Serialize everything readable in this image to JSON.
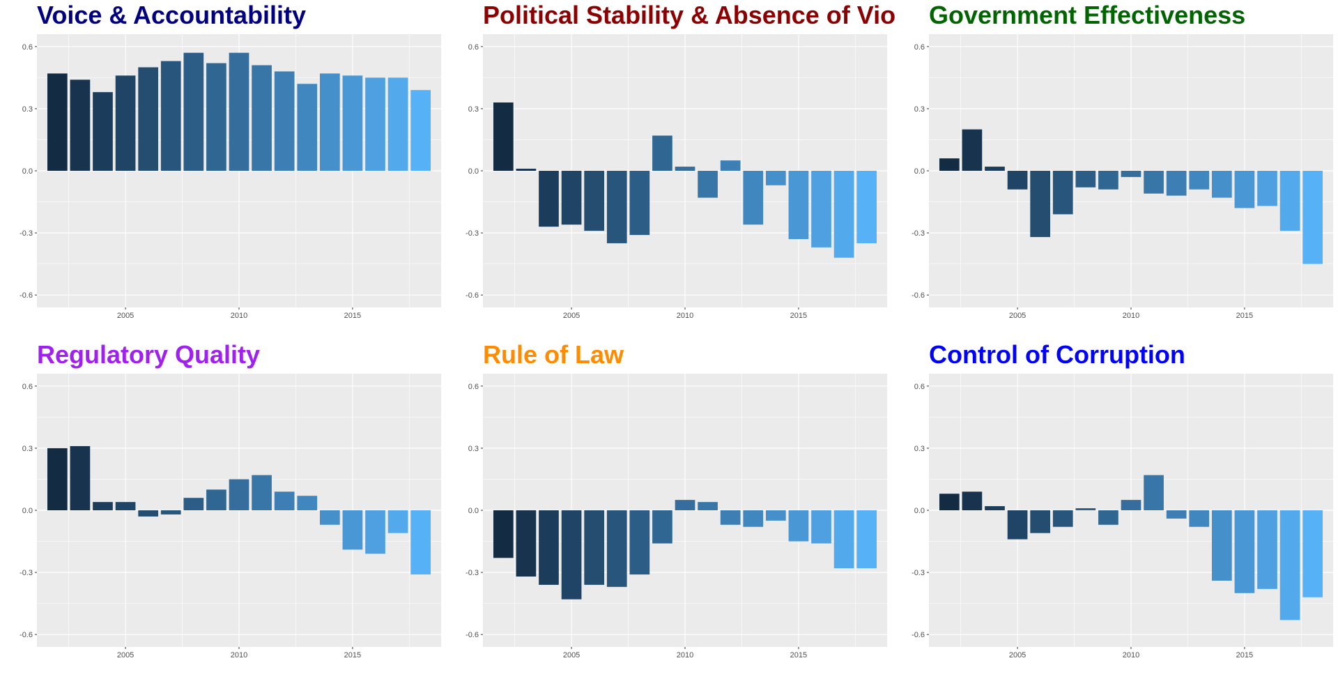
{
  "chart_data": [
    {
      "type": "bar",
      "title": "Voice & Accountability",
      "title_color": "#000080",
      "x": [
        2002,
        2003,
        2004,
        2005,
        2006,
        2007,
        2008,
        2009,
        2010,
        2011,
        2012,
        2013,
        2014,
        2015,
        2016,
        2017,
        2018
      ],
      "values": [
        0.47,
        0.44,
        0.38,
        0.46,
        0.5,
        0.53,
        0.57,
        0.52,
        0.57,
        0.51,
        0.48,
        0.42,
        0.47,
        0.46,
        0.45,
        0.45,
        0.39
      ],
      "xticks": [
        "2005",
        "2010",
        "2015"
      ],
      "yticks": [
        "0.6",
        "0.3",
        "0.0",
        "-0.3",
        "-0.6"
      ],
      "ylim": [
        -0.66,
        0.66
      ],
      "grid": true
    },
    {
      "type": "bar",
      "title": "Political Stability & Absence of Vio",
      "title_color": "#8b0000",
      "x": [
        2002,
        2003,
        2004,
        2005,
        2006,
        2007,
        2008,
        2009,
        2010,
        2011,
        2012,
        2013,
        2014,
        2015,
        2016,
        2017,
        2018
      ],
      "values": [
        0.33,
        0.01,
        -0.27,
        -0.26,
        -0.29,
        -0.35,
        -0.31,
        0.17,
        0.02,
        -0.13,
        0.05,
        -0.26,
        -0.07,
        -0.33,
        -0.37,
        -0.42,
        -0.35
      ],
      "xticks": [
        "2005",
        "2010",
        "2015"
      ],
      "yticks": [
        "0.6",
        "0.3",
        "0.0",
        "-0.3",
        "-0.6"
      ],
      "ylim": [
        -0.66,
        0.66
      ],
      "grid": true
    },
    {
      "type": "bar",
      "title": "Government Effectiveness",
      "title_color": "#006400",
      "x": [
        2002,
        2003,
        2004,
        2005,
        2006,
        2007,
        2008,
        2009,
        2010,
        2011,
        2012,
        2013,
        2014,
        2015,
        2016,
        2017,
        2018
      ],
      "values": [
        0.06,
        0.2,
        0.02,
        -0.09,
        -0.32,
        -0.21,
        -0.08,
        -0.09,
        -0.03,
        -0.11,
        -0.12,
        -0.09,
        -0.13,
        -0.18,
        -0.17,
        -0.29,
        -0.45
      ],
      "xticks": [
        "2005",
        "2010",
        "2015"
      ],
      "yticks": [
        "0.6",
        "0.3",
        "0.0",
        "-0.3",
        "-0.6"
      ],
      "ylim": [
        -0.66,
        0.66
      ],
      "grid": true
    },
    {
      "type": "bar",
      "title": "Regulatory Quality",
      "title_color": "#a020f0",
      "x": [
        2002,
        2003,
        2004,
        2005,
        2006,
        2007,
        2008,
        2009,
        2010,
        2011,
        2012,
        2013,
        2014,
        2015,
        2016,
        2017,
        2018
      ],
      "values": [
        0.3,
        0.31,
        0.04,
        0.04,
        -0.03,
        -0.02,
        0.06,
        0.1,
        0.15,
        0.17,
        0.09,
        0.07,
        -0.07,
        -0.19,
        -0.21,
        -0.11,
        -0.31
      ],
      "xticks": [
        "2005",
        "2010",
        "2015"
      ],
      "yticks": [
        "0.6",
        "0.3",
        "0.0",
        "-0.3",
        "-0.6"
      ],
      "ylim": [
        -0.66,
        0.66
      ],
      "grid": true
    },
    {
      "type": "bar",
      "title": "Rule of Law",
      "title_color": "#ff8c00",
      "x": [
        2002,
        2003,
        2004,
        2005,
        2006,
        2007,
        2008,
        2009,
        2010,
        2011,
        2012,
        2013,
        2014,
        2015,
        2016,
        2017,
        2018
      ],
      "values": [
        -0.23,
        -0.32,
        -0.36,
        -0.43,
        -0.36,
        -0.37,
        -0.31,
        -0.16,
        0.05,
        0.04,
        -0.07,
        -0.08,
        -0.05,
        -0.15,
        -0.16,
        -0.28,
        -0.28
      ],
      "xticks": [
        "2005",
        "2010",
        "2015"
      ],
      "yticks": [
        "0.6",
        "0.3",
        "0.0",
        "-0.3",
        "-0.6"
      ],
      "ylim": [
        -0.66,
        0.66
      ],
      "grid": true
    },
    {
      "type": "bar",
      "title": "Control of Corruption",
      "title_color": "#0000ff",
      "x": [
        2002,
        2003,
        2004,
        2005,
        2006,
        2007,
        2008,
        2009,
        2010,
        2011,
        2012,
        2013,
        2014,
        2015,
        2016,
        2017,
        2018
      ],
      "values": [
        0.08,
        0.09,
        0.02,
        -0.14,
        -0.11,
        -0.08,
        0.01,
        -0.07,
        0.05,
        0.17,
        -0.04,
        -0.08,
        -0.34,
        -0.4,
        -0.38,
        -0.53,
        -0.42
      ],
      "xticks": [
        "2005",
        "2010",
        "2015"
      ],
      "yticks": [
        "0.6",
        "0.3",
        "0.0",
        "-0.3",
        "-0.6"
      ],
      "ylim": [
        -0.66,
        0.66
      ],
      "grid": true
    }
  ],
  "colors": {
    "panel_bg": "#ebebeb",
    "grid_major": "#ffffff",
    "bar_gradient_low": "#132b43",
    "bar_gradient_high": "#56b1f7"
  }
}
